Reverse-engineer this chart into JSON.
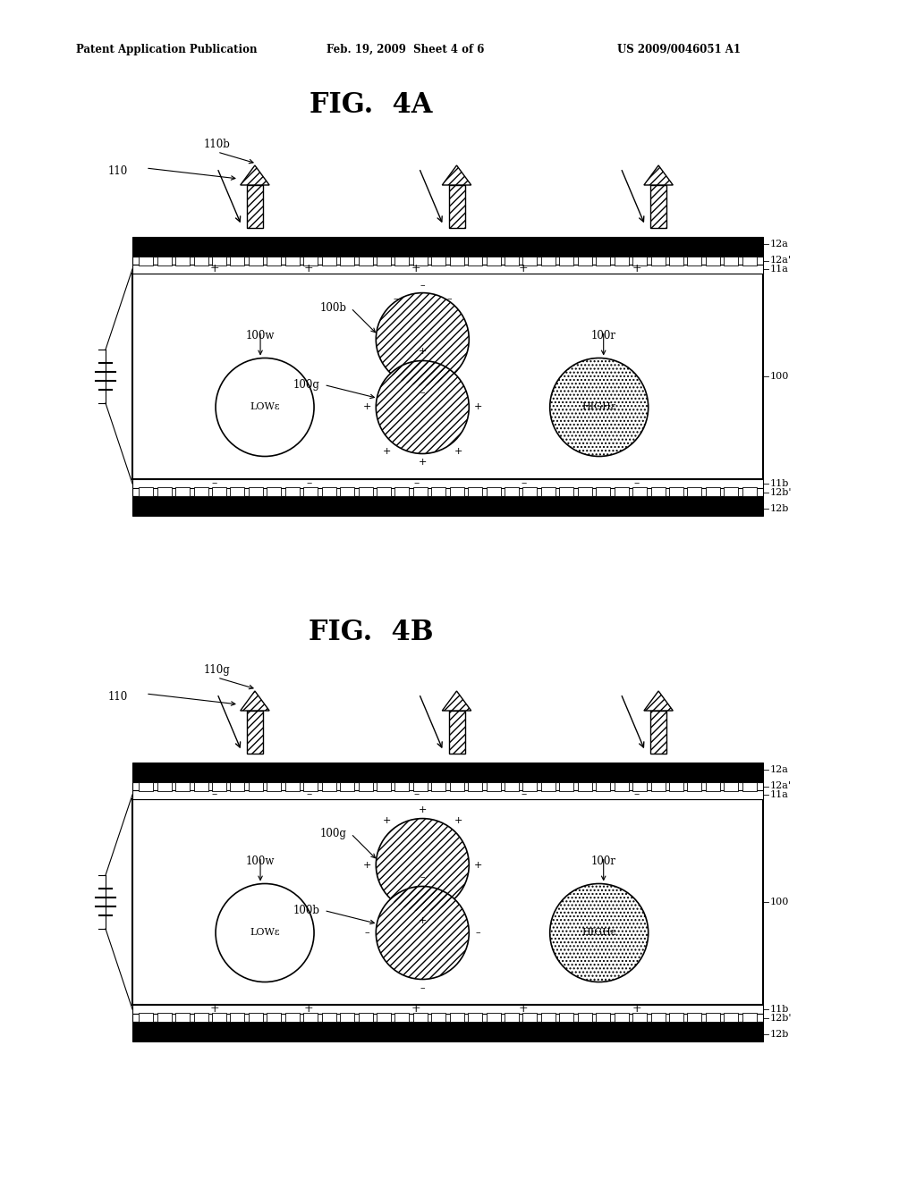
{
  "title_4a": "FIG.  4A",
  "title_4b": "FIG.  4B",
  "header_left": "Patent Application Publication",
  "header_mid": "Feb. 19, 2009  Sheet 4 of 6",
  "header_right": "US 2009/0046051 A1",
  "bg_color": "#ffffff",
  "line_color": "#000000"
}
